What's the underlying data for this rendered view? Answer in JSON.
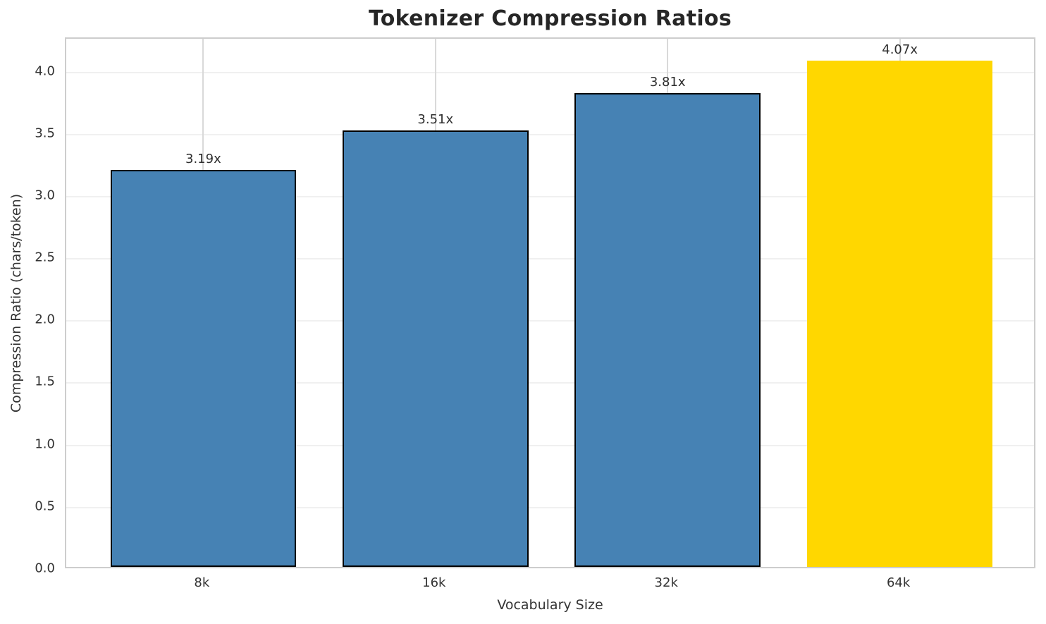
{
  "chart_data": {
    "type": "bar",
    "title": "Tokenizer Compression Ratios",
    "xlabel": "Vocabulary Size",
    "ylabel": "Compression Ratio (chars/token)",
    "categories": [
      "8k",
      "16k",
      "32k",
      "64k"
    ],
    "values": [
      3.19,
      3.51,
      3.81,
      4.07
    ],
    "bar_labels": [
      "3.19x",
      "3.51x",
      "3.81x",
      "4.07x"
    ],
    "bar_colors": [
      "#4682B4",
      "#4682B4",
      "#4682B4",
      "#FFD700"
    ],
    "bar_edge_colors": [
      "#000000",
      "#000000",
      "#000000",
      "none"
    ],
    "yticks": [
      0,
      0.5,
      1,
      1.5,
      2,
      2.5,
      3,
      3.5,
      4
    ],
    "ytick_labels": [
      "0.0",
      "0.5",
      "1.0",
      "1.5",
      "2.0",
      "2.5",
      "3.0",
      "3.5",
      "4.0"
    ],
    "ylim": [
      0,
      4.27
    ],
    "grid": true,
    "legend_position": "none",
    "colors": {
      "bar_default": "#4682B4",
      "bar_highlight": "#FFD700",
      "bar_edge": "#000000",
      "spine": "#cdcdcd",
      "h_gridline": "#f0f0f0",
      "v_gridline": "#d9d9d9",
      "text": "#333333",
      "title_text": "#262626"
    }
  }
}
